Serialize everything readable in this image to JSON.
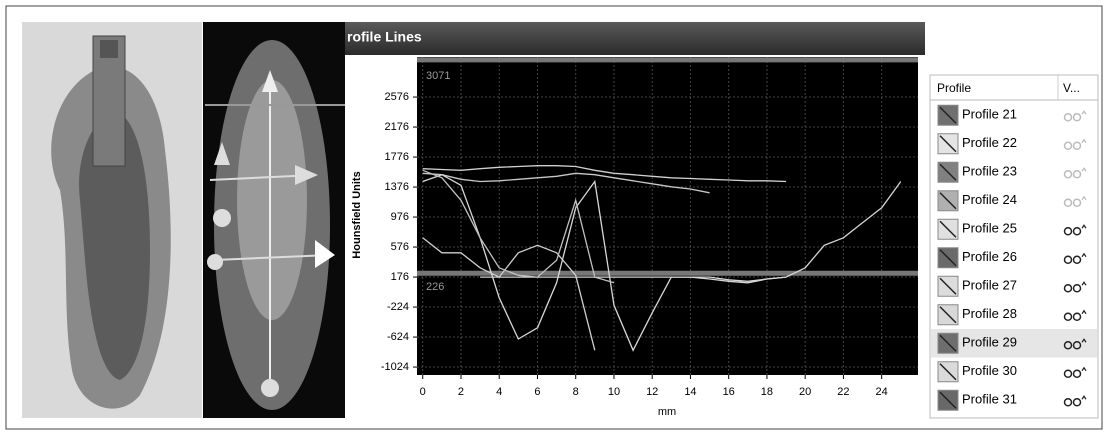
{
  "window_title": "rofile Lines",
  "chart_data": {
    "type": "line",
    "y_label": "Hounsfield Units",
    "x_label": "mm",
    "x": [
      0,
      1,
      2,
      3,
      4,
      5,
      6,
      7,
      8,
      9,
      10,
      11,
      12,
      13,
      14,
      15,
      16,
      17,
      18,
      19,
      20,
      21,
      22,
      23,
      24,
      25
    ],
    "xlim": [
      -0.3,
      25.9
    ],
    "xticks": [
      0,
      2,
      4,
      6,
      8,
      10,
      12,
      14,
      16,
      18,
      20,
      22,
      24
    ],
    "ylim": [
      -1130,
      3110
    ],
    "yticks": [
      -1024,
      -624,
      -224,
      176,
      576,
      976,
      1376,
      1776,
      2176,
      2576
    ],
    "grid": true,
    "background": "#000000",
    "annotations": [
      {
        "value": 3071,
        "label": "3071"
      },
      {
        "value": 226,
        "label": "226"
      }
    ],
    "series": [
      {
        "color": "#d0d0d0",
        "values": [
          1620,
          1610,
          1600,
          1620,
          1640,
          1650,
          1660,
          1660,
          1650,
          1600,
          1560,
          1540,
          1520,
          1500,
          1490,
          1480,
          1470,
          1460,
          1460,
          1450,
          null,
          null,
          null,
          null,
          null,
          null
        ]
      },
      {
        "color": "#c8c8c8",
        "values": [
          1560,
          1540,
          1480,
          1450,
          1460,
          1480,
          1500,
          1520,
          1560,
          1540,
          1500,
          1460,
          1420,
          1380,
          1350,
          1300,
          null,
          null,
          null,
          null,
          null,
          null,
          null,
          null,
          null,
          null
        ]
      },
      {
        "color": "#d8d8d8",
        "values": [
          1450,
          1540,
          1400,
          700,
          -100,
          -650,
          -500,
          100,
          1100,
          1450,
          -200,
          -800,
          -300,
          176,
          176,
          150,
          120,
          100,
          150,
          176,
          null,
          null,
          null,
          null,
          null,
          null
        ]
      },
      {
        "color": "#cfcfcf",
        "values": [
          700,
          500,
          500,
          300,
          176,
          500,
          600,
          500,
          200,
          -800,
          null,
          null,
          null,
          null,
          null,
          null,
          null,
          null,
          null,
          null,
          null,
          null,
          null,
          null,
          null,
          null
        ]
      },
      {
        "color": "#d4d4d4",
        "values": [
          null,
          null,
          null,
          176,
          176,
          176,
          176,
          176,
          176,
          176,
          176,
          176,
          176,
          176,
          176,
          176,
          140,
          120,
          150,
          176,
          300,
          600,
          700,
          900,
          1100,
          1450
        ]
      },
      {
        "color": "#c0c0c0",
        "values": [
          1600,
          1500,
          1200,
          700,
          300,
          200,
          176,
          400,
          1200,
          176,
          100,
          null,
          null,
          null,
          null,
          null,
          null,
          null,
          null,
          null,
          null,
          null,
          null,
          null,
          null,
          null
        ]
      }
    ]
  },
  "table": {
    "headers": [
      "Profile",
      "V..."
    ],
    "rows": [
      {
        "name": "Profile 21",
        "swatch": "#707070",
        "visible": false,
        "selected": false
      },
      {
        "name": "Profile 22",
        "swatch": "#e4e4e4",
        "visible": false,
        "selected": false
      },
      {
        "name": "Profile 23",
        "swatch": "#808080",
        "visible": false,
        "selected": false
      },
      {
        "name": "Profile 24",
        "swatch": "#b0b0b0",
        "visible": false,
        "selected": false
      },
      {
        "name": "Profile 25",
        "swatch": "#e0e0e0",
        "visible": true,
        "selected": false
      },
      {
        "name": "Profile 26",
        "swatch": "#6a6a6a",
        "visible": true,
        "selected": false
      },
      {
        "name": "Profile 27",
        "swatch": "#dcdcdc",
        "visible": true,
        "selected": false
      },
      {
        "name": "Profile 28",
        "swatch": "#d8d8d8",
        "visible": true,
        "selected": false
      },
      {
        "name": "Profile 29",
        "swatch": "#6e6e6e",
        "visible": true,
        "selected": true
      },
      {
        "name": "Profile 30",
        "swatch": "#dadada",
        "visible": true,
        "selected": false
      },
      {
        "name": "Profile 31",
        "swatch": "#686868",
        "visible": true,
        "selected": false
      }
    ]
  }
}
